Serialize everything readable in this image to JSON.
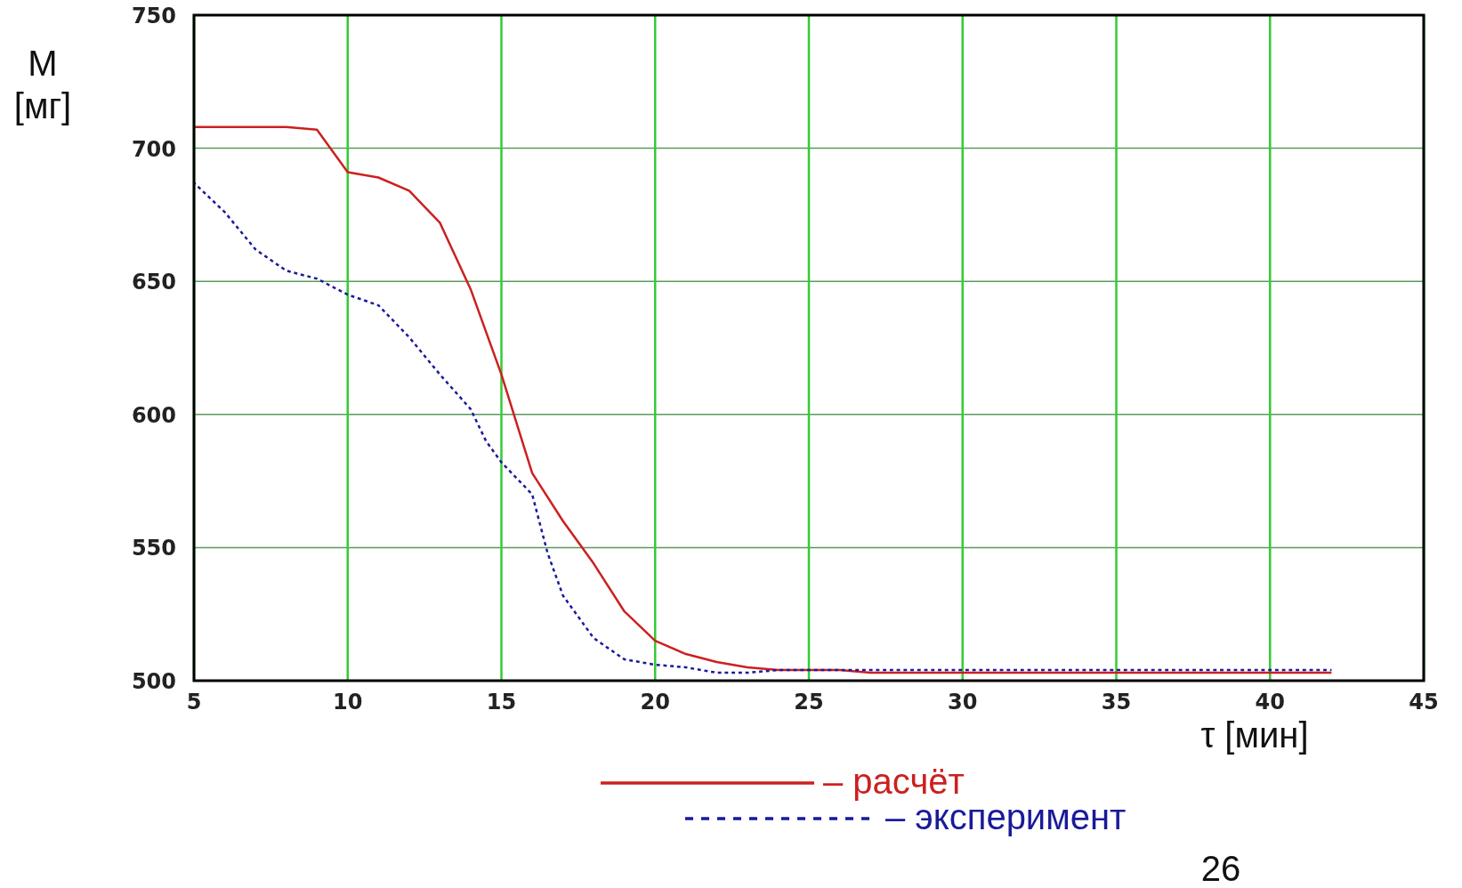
{
  "chart_data": {
    "type": "line",
    "xlabel": "τ [мин]",
    "ylabel": "M [мг]",
    "xlim": [
      5,
      45
    ],
    "ylim": [
      500,
      750
    ],
    "xticks": [
      5,
      10,
      15,
      20,
      25,
      30,
      35,
      40,
      45
    ],
    "yticks": [
      500,
      550,
      600,
      650,
      700,
      750
    ],
    "grid": true,
    "legend": "bottom",
    "annotations": [
      "26"
    ],
    "series": [
      {
        "name": "– расчёт",
        "color": "#cc2020",
        "line_style": "solid",
        "x": [
          5,
          8,
          9,
          10,
          11,
          12,
          13,
          14,
          15,
          16,
          17,
          18,
          19,
          20,
          21,
          22,
          23,
          24,
          26,
          27,
          42
        ],
        "values": [
          708,
          708,
          707,
          691,
          689,
          684,
          672,
          647,
          615,
          578,
          560,
          544,
          526,
          515,
          510,
          507,
          505,
          504,
          504,
          503,
          503
        ]
      },
      {
        "name": "– эксперимент",
        "color": "#1a1a9a",
        "line_style": "dashed",
        "x": [
          5,
          6,
          7,
          8,
          9,
          10,
          11,
          12,
          13,
          14,
          14.5,
          15,
          16,
          16.5,
          17,
          18,
          19,
          20,
          21,
          22,
          23,
          24,
          42
        ],
        "values": [
          687,
          676,
          662,
          654,
          651,
          645,
          641,
          629,
          615,
          602,
          590,
          582,
          570,
          548,
          532,
          516,
          508,
          506,
          505,
          503,
          503,
          504,
          504
        ]
      }
    ]
  }
}
